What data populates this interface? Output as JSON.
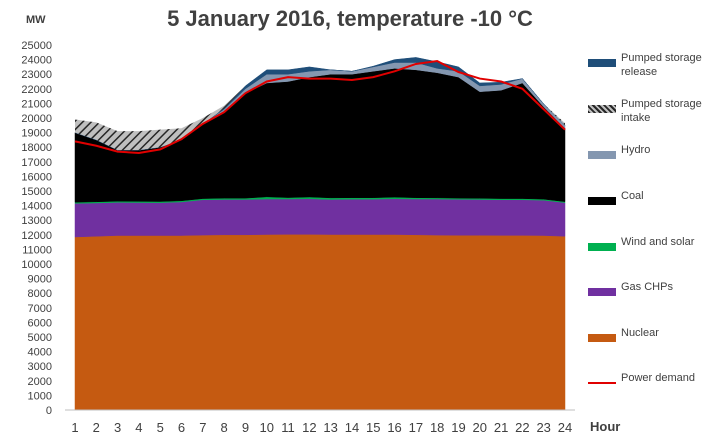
{
  "chart_data": {
    "type": "area",
    "title": "5 January 2016, temperature -10 °C",
    "ylabel": "MW",
    "xlabel": "Hour",
    "ylim": [
      0,
      25000
    ],
    "ytick_step": 1000,
    "x": [
      1,
      2,
      3,
      4,
      5,
      6,
      7,
      8,
      9,
      10,
      11,
      12,
      13,
      14,
      15,
      16,
      17,
      18,
      19,
      20,
      21,
      22,
      23,
      24
    ],
    "stacked": true,
    "grid": false,
    "legend_position": "right",
    "series": [
      {
        "name": "Nuclear",
        "color": "#c55a11",
        "values": [
          11850,
          11900,
          11950,
          11950,
          11950,
          11950,
          11980,
          12000,
          12000,
          12020,
          12030,
          12030,
          12020,
          12020,
          12020,
          12020,
          12000,
          11980,
          11970,
          11970,
          11960,
          11960,
          11950,
          11900
        ]
      },
      {
        "name": "Gas CHPs",
        "color": "#7030a0",
        "values": [
          2300,
          2280,
          2270,
          2260,
          2250,
          2300,
          2420,
          2420,
          2420,
          2430,
          2420,
          2440,
          2400,
          2420,
          2420,
          2450,
          2450,
          2470,
          2460,
          2450,
          2440,
          2440,
          2420,
          2300
        ]
      },
      {
        "name": "Wind and solar",
        "color": "#00b050",
        "values": [
          80,
          80,
          80,
          80,
          80,
          80,
          80,
          90,
          90,
          150,
          100,
          120,
          110,
          100,
          100,
          110,
          90,
          80,
          80,
          80,
          80,
          80,
          70,
          70
        ]
      },
      {
        "name": "Coal",
        "color": "#000000",
        "values": [
          4770,
          4240,
          3500,
          3510,
          3720,
          4170,
          5120,
          5890,
          7190,
          7800,
          7950,
          8210,
          8470,
          8460,
          8660,
          8820,
          8760,
          8570,
          8290,
          7300,
          7420,
          7920,
          6320,
          5030
        ]
      },
      {
        "name": "Hydro",
        "color": "#8497b0",
        "values": [
          0,
          0,
          0,
          0,
          0,
          0,
          0,
          200,
          300,
          600,
          500,
          400,
          300,
          200,
          300,
          400,
          500,
          300,
          400,
          400,
          400,
          300,
          200,
          200
        ]
      },
      {
        "name": "Pumped storage release",
        "color": "#1f4e79",
        "values": [
          0,
          0,
          0,
          0,
          0,
          0,
          0,
          50,
          200,
          300,
          300,
          300,
          0,
          0,
          50,
          200,
          350,
          450,
          300,
          200,
          150,
          0,
          0,
          0
        ]
      }
    ],
    "pumped_storage_intake": {
      "name": "Pumped storage intake",
      "color": "#404040",
      "values": [
        900,
        1200,
        1300,
        1300,
        1200,
        800,
        400,
        200,
        0,
        0,
        0,
        0,
        0,
        0,
        0,
        0,
        0,
        0,
        0,
        0,
        0,
        0,
        0,
        150
      ]
    },
    "power_demand": {
      "name": "Power demand",
      "color": "#e00000",
      "values": [
        18400,
        18100,
        17700,
        17600,
        17850,
        18550,
        19600,
        20400,
        21700,
        22500,
        22800,
        22700,
        22700,
        22600,
        22800,
        23200,
        23700,
        23900,
        23150,
        22700,
        22500,
        22000,
        20600,
        19200
      ]
    },
    "legend": [
      "Pumped storage release",
      "Pumped storage intake",
      "Hydro",
      "Coal",
      "Wind and solar",
      "Gas CHPs",
      "Nuclear",
      "Power demand"
    ]
  }
}
